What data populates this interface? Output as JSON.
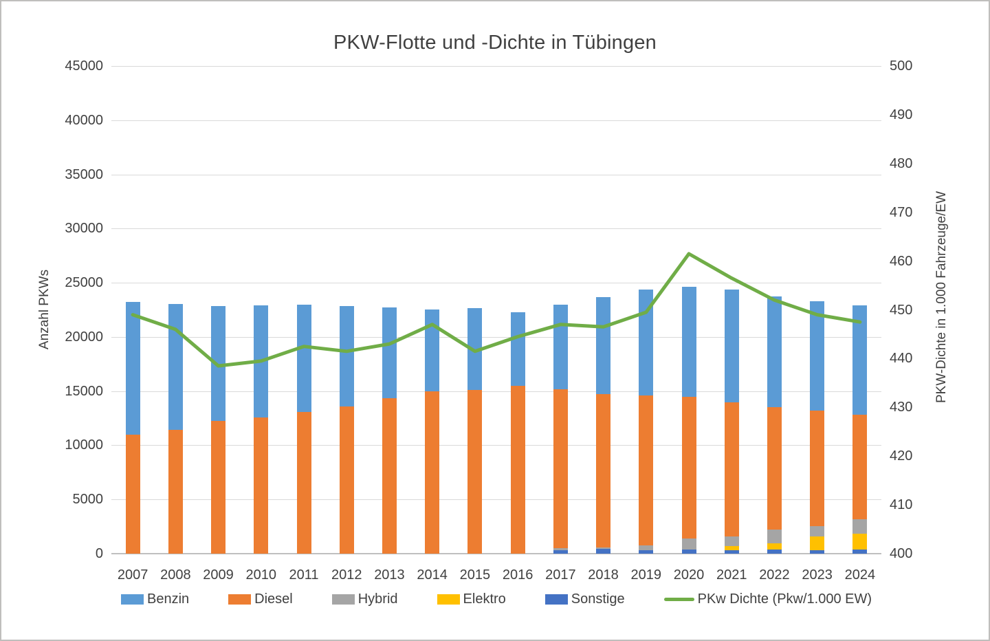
{
  "chart_data": {
    "type": "combo-stacked-bar-line",
    "title": "PKW-Flotte und -Dichte in Tübingen",
    "categories": [
      "2007",
      "2008",
      "2009",
      "2010",
      "2011",
      "2012",
      "2013",
      "2014",
      "2015",
      "2016",
      "2017",
      "2018",
      "2019",
      "2020",
      "2021",
      "2022",
      "2023",
      "2024"
    ],
    "left_axis": {
      "label": "Anzahl PKWs",
      "min": 0,
      "max": 45000,
      "step": 5000
    },
    "right_axis": {
      "label": "PKW-Dichte in 1.000 Fahrzeuge/EW",
      "min": 400,
      "max": 500,
      "step": 10
    },
    "grid_color": "#d9d9d9",
    "legend_position": "bottom",
    "series": [
      {
        "name": "Benzin",
        "type": "bar",
        "color": "#5B9BD5",
        "values": [
          23200,
          23050,
          22850,
          22900,
          22950,
          22850,
          22700,
          22550,
          22650,
          22250,
          22950,
          23650,
          24400,
          24600,
          24350,
          23750,
          23300,
          22900
        ]
      },
      {
        "name": "Diesel",
        "type": "bar",
        "color": "#ED7D31",
        "values": [
          11000,
          11450,
          12250,
          12550,
          13050,
          13600,
          14350,
          15000,
          15100,
          15500,
          15150,
          14700,
          14600,
          14450,
          13950,
          13550,
          13200,
          12800
        ]
      },
      {
        "name": "Hybrid",
        "type": "bar",
        "color": "#A5A5A5",
        "values": [
          0,
          0,
          0,
          0,
          0,
          0,
          0,
          0,
          0,
          0,
          500,
          600,
          750,
          1400,
          1600,
          2200,
          2550,
          3200
        ]
      },
      {
        "name": "Elektro",
        "type": "bar",
        "color": "#FFC000",
        "values": [
          0,
          0,
          0,
          0,
          0,
          0,
          0,
          0,
          0,
          0,
          100,
          150,
          200,
          200,
          700,
          950,
          1600,
          1850
        ]
      },
      {
        "name": "Sonstige",
        "type": "bar",
        "color": "#4472C4",
        "values": [
          0,
          0,
          0,
          0,
          0,
          0,
          0,
          0,
          0,
          0,
          350,
          450,
          350,
          400,
          350,
          400,
          350,
          400
        ]
      },
      {
        "name": "PKw Dichte (Pkw/1.000 EW)",
        "type": "line",
        "color": "#70AD47",
        "axis": "right",
        "values": [
          449,
          446,
          438.5,
          439.5,
          442.5,
          441.5,
          443,
          447,
          441.5,
          444.5,
          447,
          446.5,
          449.5,
          461.5,
          456.5,
          452,
          449,
          447.5
        ]
      }
    ]
  }
}
